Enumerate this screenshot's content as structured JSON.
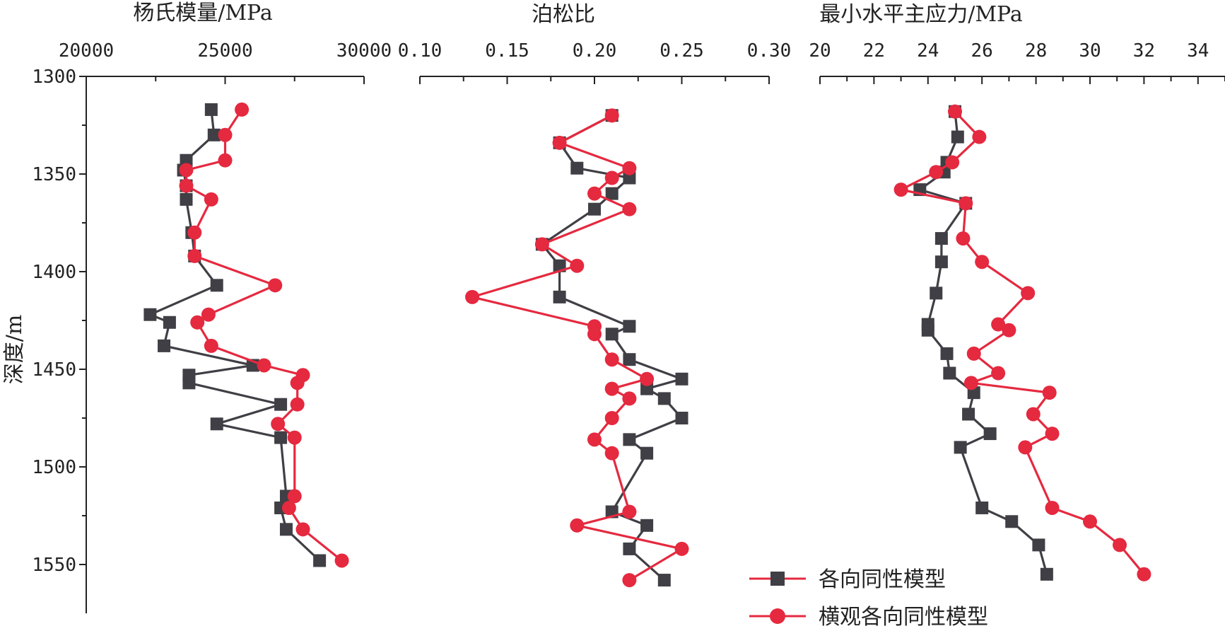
{
  "legend": {
    "iso": "各向同性模型",
    "vti": "横观各向同性模型"
  },
  "chart_data": [
    {
      "type": "line",
      "title": "杨氏模量/MPa",
      "ylabel": "深度/m",
      "xlim": [
        20000,
        30000
      ],
      "x_ticks": [
        "20000",
        "25000",
        "30000"
      ],
      "ylim": [
        1300,
        1575
      ],
      "y_ticks": [
        "1300",
        "1350",
        "1400",
        "1450",
        "1500",
        "1550"
      ],
      "y_reversed": true,
      "colors": {
        "iso": "#3f3f45",
        "vti": "#e5293f"
      },
      "series": [
        {
          "name": "各向同性模型",
          "marker": "square",
          "points": [
            [
              24500,
              1317
            ],
            [
              24600,
              1330
            ],
            [
              23600,
              1343
            ],
            [
              23500,
              1348
            ],
            [
              23600,
              1356
            ],
            [
              23600,
              1363
            ],
            [
              23800,
              1380
            ],
            [
              23900,
              1392
            ],
            [
              24700,
              1407
            ],
            [
              22300,
              1422
            ],
            [
              23000,
              1426
            ],
            [
              22800,
              1438
            ],
            [
              26000,
              1448
            ],
            [
              23700,
              1453
            ],
            [
              23700,
              1457
            ],
            [
              27000,
              1468
            ],
            [
              24700,
              1478
            ],
            [
              27000,
              1485
            ],
            [
              27200,
              1515
            ],
            [
              27000,
              1521
            ],
            [
              27200,
              1532
            ],
            [
              28400,
              1548
            ]
          ]
        },
        {
          "name": "横观各向同性模型",
          "marker": "circle",
          "points": [
            [
              25600,
              1317
            ],
            [
              25000,
              1330
            ],
            [
              25000,
              1343
            ],
            [
              23600,
              1348
            ],
            [
              23600,
              1356
            ],
            [
              24500,
              1363
            ],
            [
              23900,
              1380
            ],
            [
              23900,
              1392
            ],
            [
              26800,
              1407
            ],
            [
              24400,
              1422
            ],
            [
              24000,
              1426
            ],
            [
              24500,
              1438
            ],
            [
              26400,
              1448
            ],
            [
              27800,
              1453
            ],
            [
              27600,
              1457
            ],
            [
              27600,
              1468
            ],
            [
              26900,
              1478
            ],
            [
              27500,
              1485
            ],
            [
              27500,
              1515
            ],
            [
              27300,
              1521
            ],
            [
              27800,
              1532
            ],
            [
              29200,
              1548
            ]
          ]
        }
      ]
    },
    {
      "type": "line",
      "title": "泊松比",
      "xlim": [
        0.1,
        0.3
      ],
      "x_ticks": [
        "0.10",
        "0.15",
        "0.20",
        "0.25",
        "0.30"
      ],
      "ylim": [
        1300,
        1575
      ],
      "y_reversed": true,
      "colors": {
        "iso": "#3f3f45",
        "vti": "#e5293f"
      },
      "series": [
        {
          "name": "各向同性模型",
          "marker": "square",
          "points": [
            [
              0.21,
              1320
            ],
            [
              0.18,
              1334
            ],
            [
              0.19,
              1347
            ],
            [
              0.22,
              1352
            ],
            [
              0.21,
              1360
            ],
            [
              0.2,
              1368
            ],
            [
              0.17,
              1386
            ],
            [
              0.18,
              1397
            ],
            [
              0.18,
              1413
            ],
            [
              0.22,
              1428
            ],
            [
              0.21,
              1432
            ],
            [
              0.22,
              1445
            ],
            [
              0.25,
              1455
            ],
            [
              0.23,
              1460
            ],
            [
              0.24,
              1465
            ],
            [
              0.25,
              1475
            ],
            [
              0.22,
              1486
            ],
            [
              0.23,
              1493
            ],
            [
              0.21,
              1523
            ],
            [
              0.23,
              1530
            ],
            [
              0.22,
              1542
            ],
            [
              0.24,
              1558
            ]
          ]
        },
        {
          "name": "横观各向同性模型",
          "marker": "circle",
          "points": [
            [
              0.21,
              1320
            ],
            [
              0.18,
              1334
            ],
            [
              0.22,
              1347
            ],
            [
              0.21,
              1352
            ],
            [
              0.2,
              1360
            ],
            [
              0.22,
              1368
            ],
            [
              0.17,
              1386
            ],
            [
              0.19,
              1397
            ],
            [
              0.13,
              1413
            ],
            [
              0.2,
              1428
            ],
            [
              0.2,
              1432
            ],
            [
              0.21,
              1445
            ],
            [
              0.23,
              1455
            ],
            [
              0.21,
              1460
            ],
            [
              0.22,
              1465
            ],
            [
              0.21,
              1475
            ],
            [
              0.2,
              1486
            ],
            [
              0.21,
              1493
            ],
            [
              0.22,
              1523
            ],
            [
              0.19,
              1530
            ],
            [
              0.25,
              1542
            ],
            [
              0.22,
              1558
            ]
          ]
        }
      ]
    },
    {
      "type": "line",
      "title": "最小水平主应力/MPa",
      "xlim": [
        20,
        35
      ],
      "x_ticks": [
        "20",
        "22",
        "24",
        "26",
        "28",
        "30",
        "32",
        "34"
      ],
      "ylim": [
        1300,
        1575
      ],
      "y_reversed": true,
      "colors": {
        "iso": "#3f3f45",
        "vti": "#e5293f"
      },
      "series": [
        {
          "name": "各向同性模型",
          "marker": "square",
          "points": [
            [
              25.0,
              1318
            ],
            [
              25.1,
              1331
            ],
            [
              24.7,
              1344
            ],
            [
              24.6,
              1349
            ],
            [
              23.7,
              1358
            ],
            [
              25.4,
              1365
            ],
            [
              24.5,
              1383
            ],
            [
              24.5,
              1395
            ],
            [
              24.3,
              1411
            ],
            [
              24.0,
              1427
            ],
            [
              24.0,
              1430
            ],
            [
              24.7,
              1442
            ],
            [
              24.8,
              1452
            ],
            [
              25.7,
              1462
            ],
            [
              25.5,
              1473
            ],
            [
              26.3,
              1483
            ],
            [
              25.2,
              1490
            ],
            [
              26.0,
              1521
            ],
            [
              27.1,
              1528
            ],
            [
              28.1,
              1540
            ],
            [
              28.4,
              1555
            ]
          ]
        },
        {
          "name": "横观各向同性模型",
          "marker": "circle",
          "points": [
            [
              25.0,
              1318
            ],
            [
              25.9,
              1331
            ],
            [
              24.9,
              1344
            ],
            [
              24.3,
              1349
            ],
            [
              23.0,
              1358
            ],
            [
              25.4,
              1365
            ],
            [
              25.3,
              1383
            ],
            [
              26.0,
              1395
            ],
            [
              27.7,
              1411
            ],
            [
              26.6,
              1427
            ],
            [
              27.0,
              1430
            ],
            [
              25.7,
              1442
            ],
            [
              26.6,
              1452
            ],
            [
              25.6,
              1457
            ],
            [
              28.5,
              1462
            ],
            [
              27.9,
              1473
            ],
            [
              28.6,
              1483
            ],
            [
              27.6,
              1490
            ],
            [
              28.6,
              1521
            ],
            [
              30.0,
              1528
            ],
            [
              31.1,
              1540
            ],
            [
              32.0,
              1555
            ]
          ]
        }
      ]
    }
  ]
}
